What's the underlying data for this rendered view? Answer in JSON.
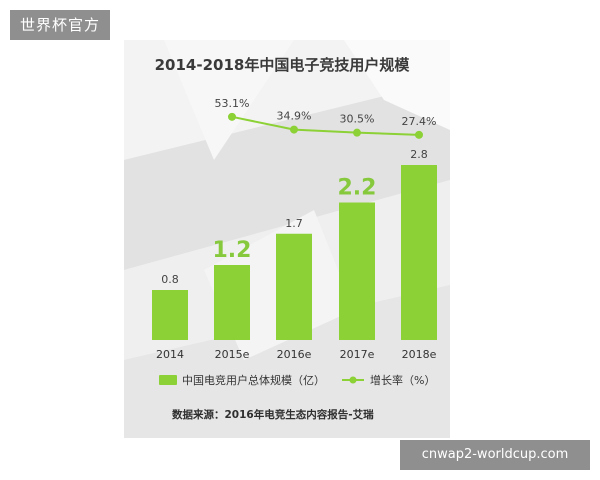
{
  "watermarks": {
    "top_left": "世界杯官方",
    "bottom_right": "cnwap2-worldcup.com"
  },
  "colors": {
    "bar": "#8cd135",
    "line": "#8cd135",
    "highlight_label": "#86c93d",
    "card_background": "#eaeaea"
  },
  "chart_data": {
    "type": "bar",
    "title": "2014-2018年中国电子竞技用户规模",
    "categories": [
      "2014",
      "2015e",
      "2016e",
      "2017e",
      "2018e"
    ],
    "series": [
      {
        "name": "中国电竞用户总体规模（亿）",
        "type": "bar",
        "values": [
          0.8,
          1.2,
          1.7,
          2.2,
          2.8
        ],
        "labels": [
          "0.8",
          "1.2",
          "1.7",
          "2.2",
          "2.8"
        ],
        "highlighted": [
          false,
          true,
          false,
          true,
          false
        ]
      },
      {
        "name": "增长率（%）",
        "type": "line",
        "values": [
          null,
          53.1,
          34.9,
          30.5,
          27.4
        ],
        "labels": [
          "",
          "53.1%",
          "34.9%",
          "30.5%",
          "27.4%"
        ]
      }
    ],
    "ylim": [
      0,
      3.2
    ],
    "grid": false,
    "legend": "bottom",
    "source": "数据来源：2016年电竞生态内容报告-艾瑞"
  }
}
